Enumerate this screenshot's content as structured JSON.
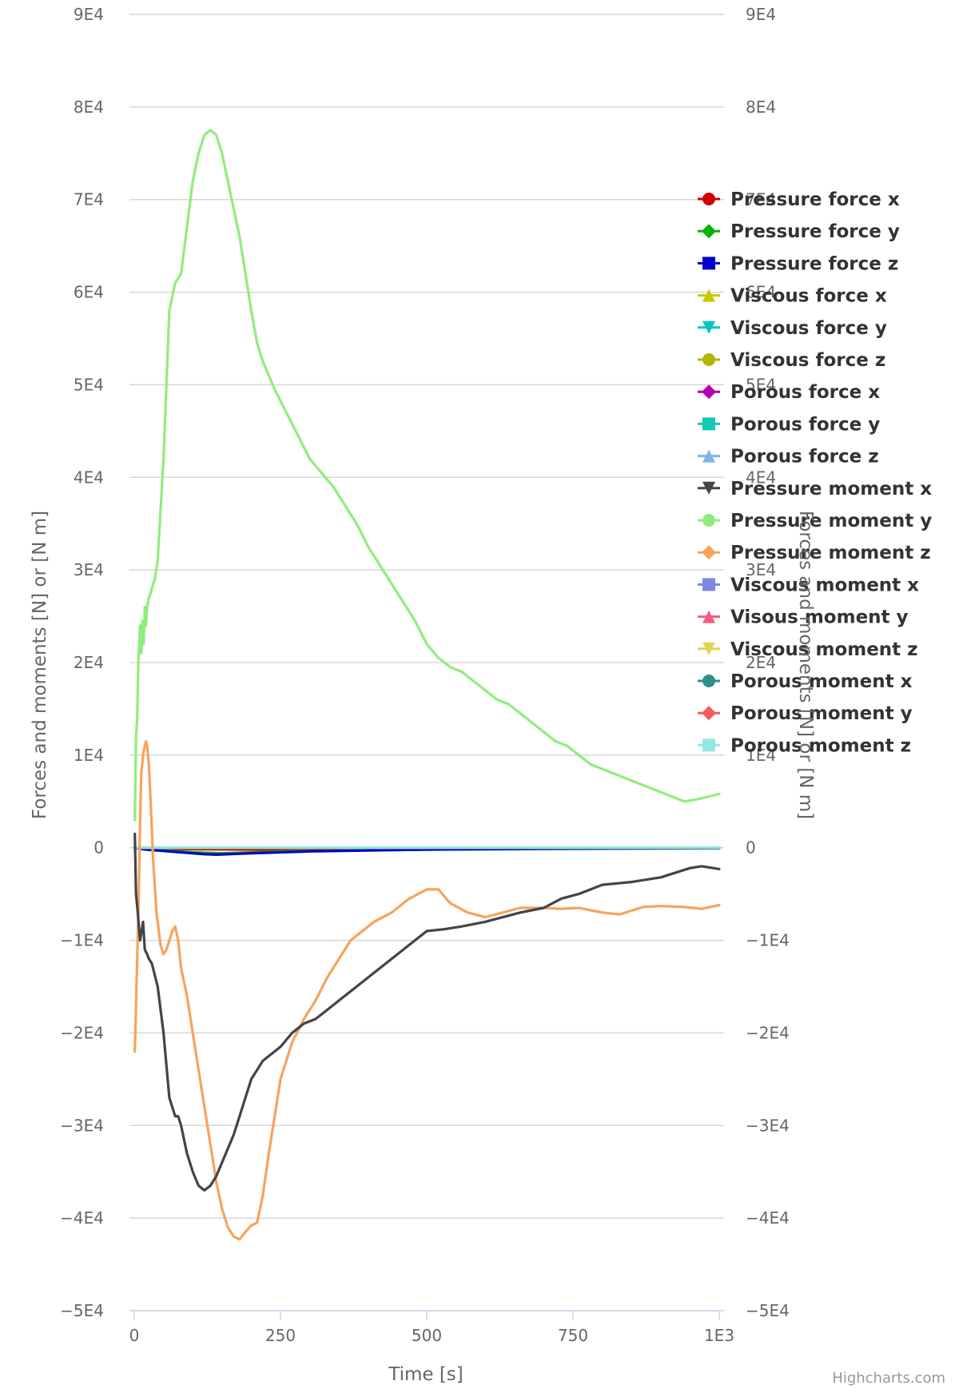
{
  "chart_data": {
    "type": "line",
    "title": "",
    "xlabel": "Time [s]",
    "ylabel": "Forces and moments [N] or [N m]",
    "ylabel_right": "Forces and moments [N] or [N m]",
    "xlim": [
      0,
      1000
    ],
    "ylim": [
      -50000,
      90000
    ],
    "x_ticks": [
      {
        "value": 0,
        "label": "0"
      },
      {
        "value": 250,
        "label": "250"
      },
      {
        "value": 500,
        "label": "500"
      },
      {
        "value": 750,
        "label": "750"
      },
      {
        "value": 1000,
        "label": "1E3"
      }
    ],
    "y_ticks": [
      {
        "value": 90000,
        "label": "9E4"
      },
      {
        "value": 80000,
        "label": "8E4"
      },
      {
        "value": 70000,
        "label": "7E4"
      },
      {
        "value": 60000,
        "label": "6E4"
      },
      {
        "value": 50000,
        "label": "5E4"
      },
      {
        "value": 40000,
        "label": "4E4"
      },
      {
        "value": 30000,
        "label": "3E4"
      },
      {
        "value": 20000,
        "label": "2E4"
      },
      {
        "value": 10000,
        "label": "1E4"
      },
      {
        "value": 0,
        "label": "0"
      },
      {
        "value": -10000,
        "label": "−1E4"
      },
      {
        "value": -20000,
        "label": "−2E4"
      },
      {
        "value": -30000,
        "label": "−3E4"
      },
      {
        "value": -40000,
        "label": "−4E4"
      },
      {
        "value": -50000,
        "label": "−5E4"
      }
    ],
    "grid": true,
    "legend_position": "right",
    "credits": "Highcharts.com",
    "series": [
      {
        "name": "Pressure force x",
        "color": "#d20000",
        "marker": "circle",
        "x": [
          0,
          50,
          100,
          200,
          400,
          600,
          800,
          1000
        ],
        "values": [
          0,
          -100,
          -150,
          -200,
          -150,
          -100,
          -50,
          -20
        ]
      },
      {
        "name": "Pressure force y",
        "color": "#00b400",
        "marker": "diamond",
        "x": [
          0,
          30,
          100,
          150,
          250,
          500,
          1000
        ],
        "values": [
          0,
          -200,
          -500,
          -600,
          -400,
          -200,
          -50
        ]
      },
      {
        "name": "Pressure force z",
        "color": "#0000c8",
        "marker": "square",
        "x": [
          0,
          10,
          20,
          40,
          80,
          120,
          140,
          200,
          300,
          500,
          700,
          1000
        ],
        "values": [
          0,
          -100,
          -200,
          -300,
          -500,
          -700,
          -750,
          -600,
          -400,
          -200,
          -100,
          -50
        ]
      },
      {
        "name": "Viscous force x",
        "color": "#c8c800",
        "marker": "triangle",
        "x": [
          0,
          1000
        ],
        "values": [
          0,
          0
        ]
      },
      {
        "name": "Viscous force y",
        "color": "#00c8c8",
        "marker": "triangle-down",
        "x": [
          0,
          1000
        ],
        "values": [
          0,
          0
        ]
      },
      {
        "name": "Viscous force z",
        "color": "#b4b400",
        "marker": "circle",
        "x": [
          0,
          1000
        ],
        "values": [
          0,
          0
        ]
      },
      {
        "name": "Porous force x",
        "color": "#b400b4",
        "marker": "diamond",
        "x": [
          0,
          1000
        ],
        "values": [
          0,
          0
        ]
      },
      {
        "name": "Porous force y",
        "color": "#14c8b4",
        "marker": "square",
        "x": [
          0,
          1000
        ],
        "values": [
          0,
          0
        ]
      },
      {
        "name": "Porous force z",
        "color": "#7cb5ec",
        "marker": "triangle",
        "x": [
          0,
          1000
        ],
        "values": [
          0,
          0
        ]
      },
      {
        "name": "Pressure moment x",
        "color": "#434348",
        "marker": "triangle-down",
        "x": [
          1,
          3,
          6,
          10,
          15,
          18,
          22,
          25,
          30,
          40,
          50,
          60,
          70,
          75,
          80,
          90,
          100,
          110,
          120,
          130,
          140,
          150,
          160,
          170,
          180,
          190,
          200,
          210,
          220,
          230,
          240,
          250,
          270,
          290,
          310,
          330,
          350,
          380,
          410,
          440,
          470,
          500,
          530,
          560,
          600,
          630,
          660,
          700,
          730,
          760,
          800,
          850,
          900,
          950,
          970,
          990,
          1000
        ],
        "values": [
          1500,
          -5000,
          -7000,
          -10000,
          -8000,
          -11000,
          -11500,
          -12000,
          -12500,
          -15000,
          -20000,
          -27000,
          -29000,
          -29000,
          -30000,
          -33000,
          -35000,
          -36500,
          -37000,
          -36500,
          -35500,
          -34000,
          -32500,
          -31000,
          -29000,
          -27000,
          -25000,
          -24000,
          -23000,
          -22500,
          -22000,
          -21500,
          -20000,
          -19000,
          -18500,
          -17500,
          -16500,
          -15000,
          -13500,
          -12000,
          -10500,
          -9000,
          -8800,
          -8500,
          -8000,
          -7500,
          -7000,
          -6500,
          -5500,
          -5000,
          -4000,
          -3700,
          -3200,
          -2200,
          -2000,
          -2200,
          -2300
        ]
      },
      {
        "name": "Pressure moment y",
        "color": "#90ed7d",
        "marker": "circle",
        "x": [
          1,
          3,
          5,
          7,
          10,
          12,
          14,
          16,
          18,
          20,
          22,
          25,
          28,
          30,
          35,
          40,
          50,
          60,
          70,
          80,
          90,
          100,
          110,
          120,
          130,
          140,
          150,
          160,
          170,
          180,
          190,
          200,
          210,
          220,
          240,
          260,
          280,
          300,
          320,
          340,
          360,
          380,
          400,
          420,
          440,
          460,
          480,
          500,
          520,
          540,
          560,
          580,
          600,
          620,
          640,
          660,
          680,
          700,
          720,
          740,
          760,
          780,
          800,
          820,
          840,
          860,
          880,
          900,
          920,
          940,
          960,
          980,
          1000
        ],
        "values": [
          3000,
          12000,
          14000,
          20000,
          24000,
          21000,
          24500,
          22000,
          26000,
          24000,
          26000,
          27000,
          27500,
          28000,
          29000,
          31000,
          42000,
          58000,
          61000,
          62000,
          67000,
          72000,
          75000,
          77000,
          77500,
          77000,
          75000,
          72000,
          69000,
          66000,
          62000,
          58000,
          54500,
          52500,
          49500,
          47000,
          44500,
          42000,
          40500,
          39000,
          37000,
          35000,
          32500,
          30500,
          28500,
          26500,
          24500,
          22000,
          20500,
          19500,
          19000,
          18000,
          17000,
          16000,
          15500,
          14500,
          13500,
          12500,
          11500,
          11000,
          10000,
          9000,
          8500,
          8000,
          7500,
          7000,
          6500,
          6000,
          5500,
          5000,
          5200,
          5500,
          5800
        ]
      },
      {
        "name": "Pressure moment z",
        "color": "#f7a35c",
        "marker": "diamond",
        "x": [
          1,
          5,
          8,
          10,
          12,
          15,
          18,
          20,
          22,
          25,
          28,
          32,
          38,
          45,
          50,
          55,
          60,
          65,
          70,
          75,
          80,
          90,
          100,
          110,
          120,
          130,
          140,
          150,
          160,
          170,
          180,
          190,
          200,
          210,
          220,
          230,
          240,
          250,
          270,
          290,
          310,
          330,
          350,
          370,
          390,
          410,
          440,
          470,
          500,
          520,
          540,
          570,
          600,
          630,
          660,
          700,
          730,
          760,
          800,
          830,
          870,
          900,
          940,
          970,
          1000
        ],
        "values": [
          -22000,
          -12000,
          -4000,
          3000,
          8000,
          10000,
          11000,
          11500,
          11000,
          9000,
          5000,
          -1000,
          -7000,
          -10500,
          -11500,
          -11000,
          -10000,
          -9000,
          -8500,
          -10000,
          -13000,
          -16000,
          -20000,
          -24000,
          -28000,
          -32000,
          -36000,
          -39000,
          -41000,
          -42000,
          -42300,
          -41500,
          -40800,
          -40500,
          -37500,
          -33000,
          -29000,
          -25000,
          -21000,
          -18500,
          -16500,
          -14000,
          -12000,
          -10000,
          -9000,
          -8000,
          -7000,
          -5500,
          -4500,
          -4500,
          -6000,
          -7000,
          -7500,
          -7000,
          -6500,
          -6500,
          -6600,
          -6500,
          -7000,
          -7200,
          -6400,
          -6300,
          -6400,
          -6600,
          -6200
        ]
      },
      {
        "name": "Viscous moment x",
        "color": "#8085e9",
        "marker": "square",
        "x": [
          0,
          1000
        ],
        "values": [
          0,
          0
        ]
      },
      {
        "name": "Visous moment y",
        "color": "#f15c80",
        "marker": "triangle",
        "x": [
          0,
          1000
        ],
        "values": [
          0,
          0
        ]
      },
      {
        "name": "Viscous moment z",
        "color": "#e4d354",
        "marker": "triangle-down",
        "x": [
          0,
          1000
        ],
        "values": [
          0,
          0
        ]
      },
      {
        "name": "Porous moment x",
        "color": "#2b908f",
        "marker": "circle",
        "x": [
          0,
          1000
        ],
        "values": [
          0,
          0
        ]
      },
      {
        "name": "Porous moment y",
        "color": "#f45b5b",
        "marker": "diamond",
        "x": [
          0,
          1000
        ],
        "values": [
          0,
          0
        ]
      },
      {
        "name": "Porous moment z",
        "color": "#91e8e1",
        "marker": "square",
        "x": [
          0,
          1000
        ],
        "values": [
          0,
          0
        ]
      }
    ]
  }
}
